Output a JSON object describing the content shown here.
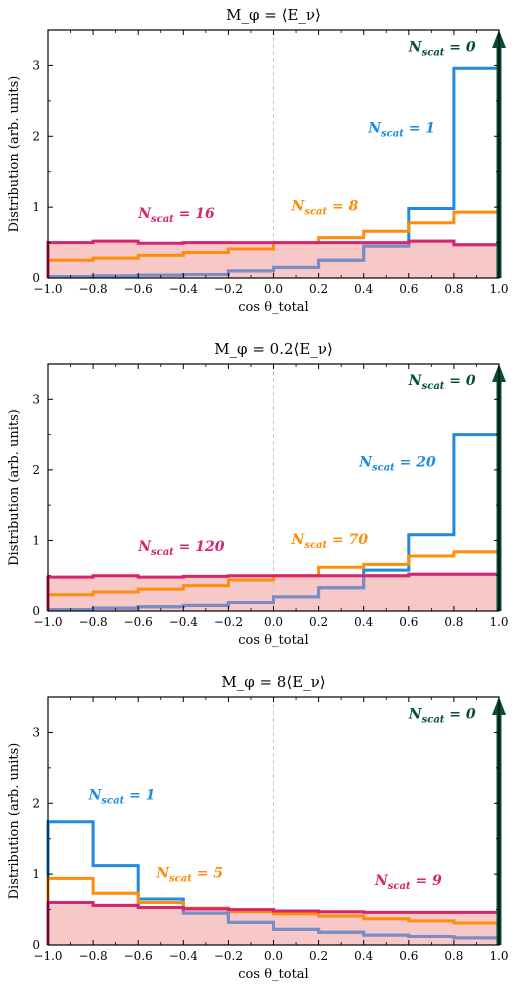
{
  "figure": {
    "panel_titles": [
      "M_φ = ⟨E_ν⟩",
      "M_φ = 0.2⟨E_ν⟩",
      "M_φ = 8⟨E_ν⟩"
    ]
  },
  "chart_data": [
    {
      "type": "step-histogram",
      "title": "M_φ = ⟨E_ν⟩",
      "xlabel": "cos θ_total",
      "ylabel": "Distribution (arb. units)",
      "xlim": [
        -1.0,
        1.0
      ],
      "ylim": [
        0,
        3.5
      ],
      "xticks": [
        "−1.0",
        "−0.8",
        "−0.6",
        "−0.4",
        "−0.2",
        "0.0",
        "0.2",
        "0.4",
        "0.6",
        "0.8",
        "1.0"
      ],
      "yticks": [
        "0",
        "1",
        "2",
        "3"
      ],
      "bin_edges": [
        -1.0,
        -0.8,
        -0.6,
        -0.4,
        -0.2,
        0.0,
        0.2,
        0.4,
        0.6,
        0.8,
        1.0
      ],
      "colors": {
        "purple": "#7c8cc2",
        "magenta": "#d6246e",
        "orange": "#ff8c0a",
        "blue": "#1f8ae0",
        "arrow": "#054c3b",
        "fill": "#f7c8c8"
      },
      "series": [
        {
          "key": "purple",
          "values": [
            0.02,
            0.03,
            0.04,
            0.05,
            0.1,
            0.15,
            0.25,
            0.45,
            0.98,
            2.96
          ]
        },
        {
          "key": "magenta",
          "values": [
            0.5,
            0.52,
            0.49,
            0.5,
            0.5,
            0.5,
            0.5,
            0.5,
            0.52,
            0.47
          ]
        },
        {
          "key": "orange",
          "values": [
            0.25,
            0.28,
            0.32,
            0.36,
            0.41,
            0.5,
            0.57,
            0.66,
            0.78,
            0.93
          ]
        },
        {
          "key": "blue",
          "values": [
            0.02,
            0.03,
            0.04,
            0.05,
            0.1,
            0.15,
            0.25,
            0.45,
            0.98,
            2.96
          ]
        }
      ],
      "arrow": {
        "x": 1.0
      },
      "annotations": [
        {
          "text_main": "N",
          "text_sub": "scat",
          "text_val": " = 0",
          "color": "arrow",
          "x": 0.6,
          "y": 3.2
        },
        {
          "text_main": "N",
          "text_sub": "scat",
          "text_val": " = 1",
          "color": "blue",
          "x": 0.42,
          "y": 2.05
        },
        {
          "text_main": "N",
          "text_sub": "scat",
          "text_val": " = 8",
          "color": "orange",
          "x": 0.08,
          "y": 0.95
        },
        {
          "text_main": "N",
          "text_sub": "scat",
          "text_val": " = 16",
          "color": "magenta",
          "x": -0.6,
          "y": 0.85
        }
      ]
    },
    {
      "type": "step-histogram",
      "title": "M_φ = 0.2⟨E_ν⟩",
      "xlabel": "cos θ_total",
      "ylabel": "Distribution (arb. units)",
      "xlim": [
        -1.0,
        1.0
      ],
      "ylim": [
        0,
        3.5
      ],
      "xticks": [
        "−1.0",
        "−0.8",
        "−0.6",
        "−0.4",
        "−0.2",
        "0.0",
        "0.2",
        "0.4",
        "0.6",
        "0.8",
        "1.0"
      ],
      "yticks": [
        "0",
        "1",
        "2",
        "3"
      ],
      "bin_edges": [
        -1.0,
        -0.8,
        -0.6,
        -0.4,
        -0.2,
        0.0,
        0.2,
        0.4,
        0.6,
        0.8,
        1.0
      ],
      "colors": {
        "purple": "#7c8cc2",
        "magenta": "#d6246e",
        "orange": "#ff8c0a",
        "blue": "#1f8ae0",
        "arrow": "#054c3b",
        "fill": "#f7c8c8"
      },
      "series": [
        {
          "key": "purple",
          "values": [
            0.02,
            0.04,
            0.06,
            0.08,
            0.12,
            0.2,
            0.33,
            0.58,
            1.08,
            2.5
          ]
        },
        {
          "key": "magenta",
          "values": [
            0.48,
            0.5,
            0.48,
            0.49,
            0.5,
            0.5,
            0.5,
            0.5,
            0.52,
            0.52
          ]
        },
        {
          "key": "orange",
          "values": [
            0.23,
            0.27,
            0.31,
            0.36,
            0.44,
            0.5,
            0.62,
            0.66,
            0.78,
            0.84
          ]
        },
        {
          "key": "blue",
          "values": [
            0.02,
            0.04,
            0.06,
            0.08,
            0.12,
            0.2,
            0.33,
            0.58,
            1.08,
            2.5
          ]
        }
      ],
      "arrow": {
        "x": 1.0
      },
      "annotations": [
        {
          "text_main": "N",
          "text_sub": "scat",
          "text_val": " = 0",
          "color": "arrow",
          "x": 0.6,
          "y": 3.2
        },
        {
          "text_main": "N",
          "text_sub": "scat",
          "text_val": " = 20",
          "color": "blue",
          "x": 0.38,
          "y": 2.05
        },
        {
          "text_main": "N",
          "text_sub": "scat",
          "text_val": " = 70",
          "color": "orange",
          "x": 0.08,
          "y": 0.95
        },
        {
          "text_main": "N",
          "text_sub": "scat",
          "text_val": " = 120",
          "color": "magenta",
          "x": -0.6,
          "y": 0.85
        }
      ]
    },
    {
      "type": "step-histogram",
      "title": "M_φ = 8⟨E_ν⟩",
      "xlabel": "cos θ_total",
      "ylabel": "Distribution (arb. units)",
      "xlim": [
        -1.0,
        1.0
      ],
      "ylim": [
        0,
        3.5
      ],
      "xticks": [
        "−1.0",
        "−0.8",
        "−0.6",
        "−0.4",
        "−0.2",
        "0.0",
        "0.2",
        "0.4",
        "0.6",
        "0.8",
        "1.0"
      ],
      "yticks": [
        "0",
        "1",
        "2",
        "3"
      ],
      "bin_edges": [
        -1.0,
        -0.8,
        -0.6,
        -0.4,
        -0.2,
        0.0,
        0.2,
        0.4,
        0.6,
        0.8,
        1.0
      ],
      "colors": {
        "purple": "#7c8cc2",
        "magenta": "#d6246e",
        "orange": "#ff8c0a",
        "blue": "#1f8ae0",
        "arrow": "#054c3b",
        "fill": "#f7c8c8"
      },
      "series": [
        {
          "key": "purple",
          "values": [
            1.74,
            1.12,
            0.65,
            0.45,
            0.32,
            0.22,
            0.18,
            0.14,
            0.12,
            0.1
          ]
        },
        {
          "key": "magenta",
          "values": [
            0.6,
            0.56,
            0.53,
            0.51,
            0.5,
            0.48,
            0.47,
            0.46,
            0.46,
            0.46
          ]
        },
        {
          "key": "orange",
          "values": [
            0.94,
            0.73,
            0.6,
            0.52,
            0.47,
            0.44,
            0.41,
            0.37,
            0.34,
            0.31
          ]
        },
        {
          "key": "blue",
          "values": [
            1.74,
            1.12,
            0.65,
            0.45,
            0.32,
            0.22,
            0.18,
            0.14,
            0.12,
            0.1
          ]
        }
      ],
      "arrow": {
        "x": 1.0
      },
      "annotations": [
        {
          "text_main": "N",
          "text_sub": "scat",
          "text_val": " = 0",
          "color": "arrow",
          "x": 0.6,
          "y": 3.2
        },
        {
          "text_main": "N",
          "text_sub": "scat",
          "text_val": " = 1",
          "color": "blue",
          "x": -0.82,
          "y": 2.05
        },
        {
          "text_main": "N",
          "text_sub": "scat",
          "text_val": " = 5",
          "color": "orange",
          "x": -0.52,
          "y": 0.95
        },
        {
          "text_main": "N",
          "text_sub": "scat",
          "text_val": " = 9",
          "color": "magenta",
          "x": 0.45,
          "y": 0.85
        }
      ]
    }
  ]
}
